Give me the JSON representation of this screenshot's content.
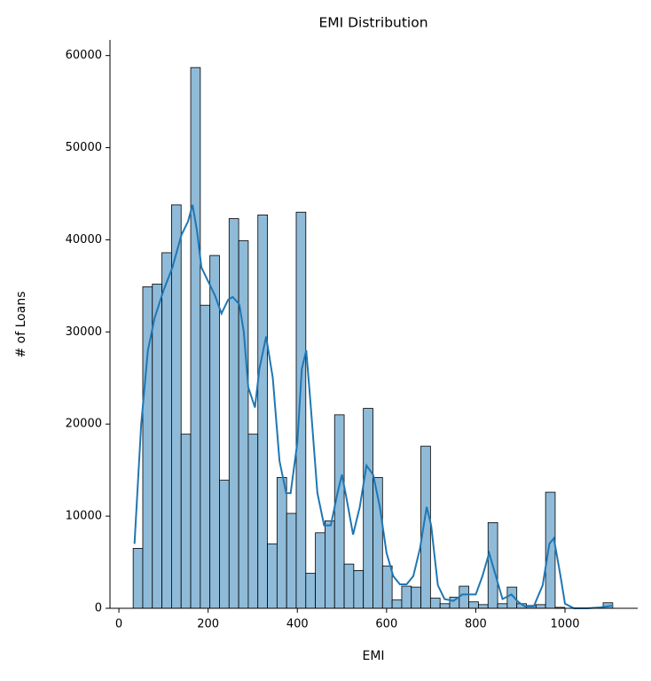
{
  "chart_data": {
    "type": "histogram",
    "title": "EMI Distribution",
    "x_label": "EMI",
    "y_label": "# of Loans",
    "bins": [
      32,
      53.5,
      75,
      96.5,
      118,
      139.5,
      161,
      182.5,
      204,
      225.5,
      247,
      268.5,
      290,
      311.5,
      333,
      354.5,
      376,
      397.5,
      419,
      440.5,
      462,
      483.5,
      505,
      526.5,
      548,
      569.5,
      591,
      612.5,
      634,
      655.5,
      677,
      698.5,
      720,
      741.5,
      763,
      784.5,
      806,
      827.5,
      849,
      870.5,
      892,
      913.5,
      935,
      956.5,
      978,
      999.5,
      1021,
      1042.5,
      1064,
      1085.5,
      1107
    ],
    "values": [
      6500,
      34900,
      35200,
      38600,
      43800,
      18900,
      58700,
      32900,
      38300,
      13900,
      42300,
      39900,
      18900,
      42700,
      7000,
      14200,
      10300,
      43000,
      3800,
      8200,
      9500,
      21000,
      4800,
      4100,
      21700,
      14200,
      4600,
      900,
      2400,
      2300,
      17600,
      1100,
      500,
      1200,
      2400,
      700,
      400,
      9300,
      500,
      2300,
      500,
      300,
      400,
      12600,
      100,
      0,
      0,
      0,
      0,
      600
    ],
    "color": "#8fbbd9",
    "edge_color": "#000000",
    "kde": {
      "color": "#1f77b4",
      "x": [
        35,
        50,
        65,
        80,
        100,
        120,
        140,
        155,
        165,
        175,
        185,
        200,
        215,
        230,
        245,
        255,
        270,
        280,
        290,
        305,
        315,
        330,
        345,
        360,
        375,
        385,
        400,
        410,
        420,
        430,
        445,
        460,
        475,
        490,
        500,
        510,
        525,
        540,
        555,
        570,
        585,
        600,
        615,
        630,
        645,
        660,
        675,
        690,
        700,
        715,
        730,
        750,
        770,
        785,
        800,
        815,
        830,
        845,
        860,
        880,
        895,
        910,
        930,
        950,
        965,
        975,
        990,
        1000,
        1020,
        1050,
        1080,
        1108
      ],
      "values": [
        7000,
        20000,
        28000,
        31500,
        34500,
        37000,
        40500,
        42000,
        43800,
        41000,
        37000,
        35500,
        34000,
        32000,
        33500,
        33800,
        33000,
        30000,
        24000,
        21800,
        26000,
        29500,
        25000,
        16000,
        12500,
        12500,
        18000,
        26000,
        28000,
        22000,
        12500,
        9000,
        9000,
        12500,
        14500,
        12000,
        8000,
        11000,
        15500,
        14500,
        11000,
        6000,
        3500,
        2600,
        2600,
        3500,
        6500,
        11000,
        9000,
        2500,
        1000,
        800,
        1500,
        1500,
        1500,
        3500,
        6000,
        3500,
        1000,
        1500,
        700,
        200,
        200,
        2500,
        7000,
        7600,
        3500,
        500,
        0,
        0,
        100,
        300
      ]
    },
    "xlim": [
      -20,
      1163
    ],
    "ylim": [
      0,
      61700
    ],
    "xticks": [
      0,
      200,
      400,
      600,
      800,
      1000
    ],
    "yticks": [
      0,
      10000,
      20000,
      30000,
      40000,
      50000,
      60000
    ]
  }
}
